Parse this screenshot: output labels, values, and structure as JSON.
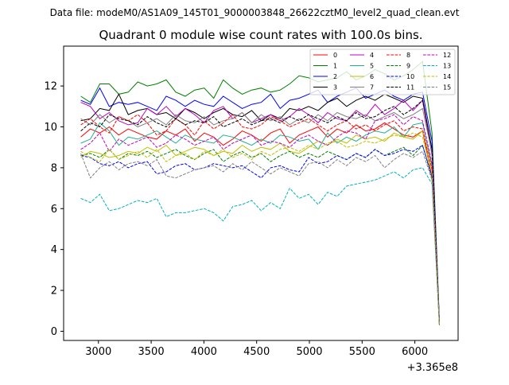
{
  "chart_data": {
    "type": "line",
    "suptitle": "Data file: modeM0/AS1A09_145T01_9000003848_26622cztM0_level2_quad_clean.evt",
    "title": "Quadrant 0 module wise count rates with 100.0s bins.",
    "xlabel": "",
    "ylabel": "",
    "x_offset_label": "+3.365e8",
    "xlim": [
      2670,
      6410
    ],
    "ylim": [
      -0.45,
      13.95
    ],
    "x_ticks": [
      3000,
      3500,
      4000,
      4500,
      5000,
      5500,
      6000
    ],
    "x_tick_labels": [
      "3000",
      "3500",
      "4000",
      "4500",
      "5000",
      "5500",
      "6000"
    ],
    "y_ticks": [
      0,
      2,
      4,
      6,
      8,
      10,
      12
    ],
    "y_tick_labels": [
      "0",
      "2",
      "4",
      "6",
      "8",
      "10",
      "12"
    ],
    "grid": false,
    "legend_position": "top-right",
    "legend_columns": 4,
    "x": [
      2833,
      2923,
      3013,
      3103,
      3193,
      3283,
      3373,
      3463,
      3553,
      3643,
      3733,
      3823,
      3913,
      4003,
      4093,
      4183,
      4273,
      4363,
      4453,
      4543,
      4633,
      4723,
      4813,
      4903,
      4993,
      5083,
      5173,
      5263,
      5353,
      5443,
      5533,
      5623,
      5713,
      5803,
      5893,
      5983,
      6073,
      6163,
      6233
    ],
    "series": [
      {
        "name": "0",
        "color": "#ff0000",
        "dash": "solid",
        "values": [
          9.5,
          9.9,
          9.7,
          10.0,
          9.6,
          9.9,
          9.7,
          9.5,
          9.4,
          9.8,
          9.6,
          9.9,
          9.3,
          9.7,
          9.5,
          9.1,
          9.4,
          9.8,
          9.6,
          9.3,
          9.7,
          9.9,
          9.2,
          9.6,
          9.8,
          10.0,
          9.5,
          9.9,
          9.7,
          10.1,
          9.8,
          9.9,
          10.2,
          9.9,
          9.6,
          9.5,
          9.8,
          7.5,
          0.4
        ]
      },
      {
        "name": "1",
        "color": "#008000",
        "dash": "solid",
        "values": [
          11.5,
          11.2,
          12.1,
          12.1,
          11.6,
          11.7,
          12.2,
          12.0,
          12.1,
          12.3,
          11.7,
          11.5,
          11.8,
          11.9,
          11.4,
          12.3,
          11.9,
          11.6,
          11.8,
          11.9,
          11.7,
          11.8,
          12.1,
          12.5,
          12.4,
          12.2,
          12.3,
          12.4,
          12.7,
          12.3,
          12.5,
          12.8,
          12.6,
          12.3,
          12.5,
          12.8,
          13.2,
          9.7,
          0.5
        ]
      },
      {
        "name": "2",
        "color": "#0000ff",
        "dash": "solid",
        "values": [
          11.3,
          11.1,
          11.9,
          11.0,
          11.2,
          11.1,
          11.2,
          11.0,
          10.8,
          11.5,
          11.3,
          11.0,
          11.3,
          11.1,
          11.0,
          11.5,
          11.2,
          10.9,
          11.1,
          11.2,
          11.6,
          10.9,
          11.3,
          11.4,
          11.6,
          11.8,
          11.2,
          11.5,
          11.7,
          11.9,
          11.4,
          11.6,
          11.8,
          11.5,
          11.3,
          11.6,
          11.7,
          9.3,
          0.4
        ]
      },
      {
        "name": "3",
        "color": "#000000",
        "dash": "solid",
        "values": [
          10.3,
          10.4,
          10.9,
          10.8,
          11.6,
          10.6,
          10.8,
          10.9,
          10.6,
          10.7,
          10.4,
          10.9,
          10.7,
          10.4,
          10.7,
          10.9,
          10.6,
          10.5,
          10.8,
          10.3,
          10.6,
          10.4,
          10.9,
          10.8,
          11.0,
          10.8,
          11.2,
          11.4,
          11.0,
          11.3,
          11.5,
          11.3,
          11.6,
          11.4,
          11.2,
          11.5,
          11.4,
          8.9,
          0.4
        ]
      },
      {
        "name": "4",
        "color": "#c000c0",
        "dash": "solid",
        "values": [
          11.2,
          11.0,
          10.4,
          10.7,
          10.3,
          10.1,
          10.2,
          10.9,
          10.6,
          11.0,
          10.5,
          10.9,
          10.6,
          10.2,
          10.8,
          11.0,
          10.4,
          10.7,
          10.2,
          10.4,
          10.6,
          10.3,
          10.5,
          10.9,
          10.6,
          10.2,
          10.7,
          10.4,
          10.3,
          10.8,
          10.5,
          11.1,
          10.6,
          10.9,
          11.3,
          10.8,
          11.3,
          8.6,
          0.4
        ]
      },
      {
        "name": "5",
        "color": "#20b090",
        "dash": "solid",
        "values": [
          9.2,
          9.4,
          10.2,
          9.8,
          9.1,
          9.5,
          9.4,
          9.6,
          9.8,
          9.5,
          9.2,
          9.6,
          9.4,
          9.3,
          9.2,
          9.6,
          9.5,
          9.3,
          9.1,
          9.4,
          9.2,
          9.6,
          9.5,
          9.3,
          9.4,
          8.9,
          9.7,
          9.2,
          9.5,
          9.3,
          9.6,
          9.8,
          9.7,
          10.0,
          9.5,
          10.1,
          10.2,
          8.1,
          0.4
        ]
      },
      {
        "name": "6",
        "color": "#c0c000",
        "dash": "solid",
        "values": [
          8.5,
          8.8,
          8.7,
          8.5,
          8.6,
          8.8,
          8.7,
          9.0,
          8.8,
          9.1,
          8.6,
          8.8,
          9.0,
          8.9,
          8.6,
          8.8,
          8.7,
          9.1,
          8.8,
          9.0,
          8.9,
          9.2,
          8.8,
          8.7,
          9.0,
          9.3,
          9.1,
          9.4,
          9.2,
          9.6,
          9.4,
          9.5,
          9.3,
          9.7,
          9.5,
          9.4,
          9.8,
          7.9,
          0.3
        ]
      },
      {
        "name": "7",
        "color": "#808080",
        "dash": "solid",
        "values": [
          10.4,
          10.1,
          10.6,
          10.2,
          10.5,
          10.3,
          10.0,
          10.2,
          10.4,
          10.1,
          10.6,
          10.3,
          10.2,
          10.5,
          10.1,
          10.3,
          10.4,
          10.7,
          10.2,
          10.6,
          10.3,
          10.5,
          10.1,
          10.4,
          10.2,
          10.6,
          10.3,
          10.7,
          10.5,
          10.4,
          10.6,
          10.3,
          10.5,
          10.7,
          10.4,
          10.6,
          10.9,
          8.7,
          0.4
        ]
      },
      {
        "name": "8",
        "color": "#ff0000",
        "dash": "dashed",
        "values": [
          10.1,
          10.4,
          10.0,
          9.7,
          10.5,
          10.3,
          10.6,
          10.2,
          9.6,
          9.8,
          10.4,
          10.1,
          9.6,
          10.3,
          9.9,
          10.2,
          10.6,
          10.0,
          9.9,
          10.1,
          10.5,
          10.3,
          10.0,
          10.2,
          10.4,
          10.1,
          9.8,
          10.1,
          10.3,
          9.9,
          10.1,
          9.8,
          10.1,
          10.3,
          9.8,
          10.0,
          9.9,
          7.9,
          0.3
        ]
      },
      {
        "name": "9",
        "color": "#008000",
        "dash": "dashed",
        "values": [
          8.6,
          8.7,
          8.5,
          8.9,
          8.4,
          8.7,
          8.6,
          8.8,
          8.5,
          8.7,
          8.9,
          8.6,
          8.4,
          8.7,
          8.9,
          8.3,
          8.6,
          8.8,
          8.5,
          8.7,
          8.3,
          8.6,
          8.8,
          8.5,
          8.7,
          8.5,
          8.8,
          8.6,
          8.4,
          8.7,
          8.5,
          8.9,
          8.6,
          8.8,
          9.0,
          8.6,
          9.1,
          7.6,
          0.3
        ]
      },
      {
        "name": "10",
        "color": "#0000ff",
        "dash": "dashed",
        "values": [
          8.6,
          8.5,
          8.2,
          8.1,
          8.3,
          8.0,
          8.2,
          8.3,
          7.7,
          7.8,
          8.1,
          8.2,
          7.9,
          8.0,
          8.2,
          8.1,
          8.0,
          8.1,
          7.8,
          7.5,
          8.0,
          8.1,
          7.9,
          7.8,
          8.5,
          8.2,
          8.3,
          8.6,
          8.4,
          8.7,
          8.5,
          8.9,
          8.6,
          8.7,
          8.9,
          8.8,
          9.1,
          7.5,
          0.3
        ]
      },
      {
        "name": "11",
        "color": "#000000",
        "dash": "dashed",
        "values": [
          9.8,
          10.2,
          10.0,
          10.6,
          10.4,
          10.3,
          10.1,
          10.5,
          10.2,
          10.0,
          10.4,
          10.1,
          10.3,
          10.2,
          10.5,
          10.0,
          10.2,
          10.4,
          10.1,
          10.3,
          10.4,
          10.2,
          10.5,
          10.3,
          10.6,
          10.4,
          10.2,
          10.5,
          10.3,
          10.7,
          10.4,
          10.5,
          10.8,
          11.0,
          10.6,
          10.9,
          11.3,
          8.9,
          0.4
        ]
      },
      {
        "name": "12",
        "color": "#c000c0",
        "dash": "dashed",
        "values": [
          8.9,
          9.2,
          9.7,
          8.8,
          9.4,
          9.1,
          9.3,
          9.5,
          9.0,
          9.2,
          9.6,
          9.4,
          9.1,
          9.3,
          9.5,
          8.9,
          9.2,
          9.4,
          9.6,
          9.1,
          9.3,
          9.2,
          9.0,
          9.4,
          9.6,
          9.3,
          9.1,
          9.5,
          9.8,
          9.7,
          9.4,
          10.3,
          10.4,
          10.6,
          10.1,
          10.5,
          10.3,
          8.2,
          0.4
        ]
      },
      {
        "name": "13",
        "color": "#00b0c0",
        "dash": "dashed",
        "values": [
          6.5,
          6.3,
          6.7,
          5.9,
          6.0,
          6.2,
          6.4,
          6.3,
          6.5,
          5.6,
          5.8,
          5.8,
          5.9,
          6.0,
          5.8,
          5.4,
          6.1,
          6.2,
          6.4,
          5.9,
          6.3,
          6.0,
          7.0,
          6.5,
          6.7,
          6.2,
          6.8,
          6.6,
          7.1,
          7.2,
          7.3,
          7.4,
          7.6,
          7.8,
          7.5,
          7.9,
          8.0,
          7.2,
          0.3
        ]
      },
      {
        "name": "14",
        "color": "#c0c000",
        "dash": "dashed",
        "values": [
          8.8,
          8.5,
          8.3,
          8.9,
          8.4,
          8.6,
          8.8,
          8.5,
          8.9,
          8.3,
          8.6,
          8.7,
          8.4,
          8.8,
          8.6,
          8.9,
          8.5,
          8.7,
          8.4,
          8.8,
          8.6,
          8.9,
          9.0,
          8.8,
          9.1,
          8.9,
          9.2,
          9.3,
          9.0,
          9.1,
          9.3,
          9.2,
          9.4,
          9.6,
          9.5,
          9.7,
          9.5,
          7.7,
          0.3
        ]
      },
      {
        "name": "15",
        "color": "#808080",
        "dash": "dashed",
        "values": [
          8.7,
          7.5,
          8.0,
          8.3,
          7.9,
          8.2,
          8.3,
          8.1,
          8.4,
          7.6,
          7.5,
          7.7,
          7.9,
          8.0,
          8.1,
          7.8,
          8.2,
          7.9,
          8.3,
          8.0,
          7.7,
          8.0,
          7.8,
          7.6,
          8.2,
          8.3,
          8.0,
          8.4,
          8.1,
          8.5,
          8.3,
          8.6,
          8.0,
          8.4,
          8.7,
          8.5,
          8.8,
          7.4,
          0.3
        ]
      }
    ]
  }
}
